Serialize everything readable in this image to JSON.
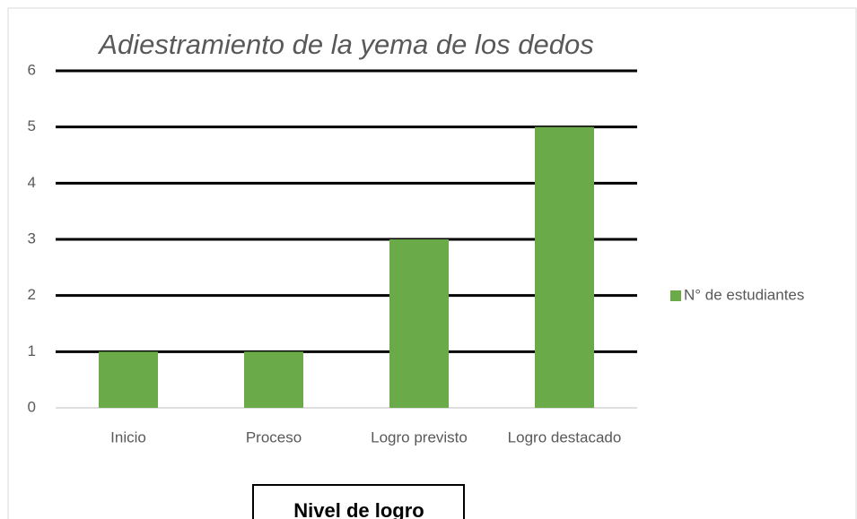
{
  "chart_data": {
    "type": "bar",
    "title": "Adiestramiento de la yema de los dedos",
    "categories": [
      "Inicio",
      "Proceso",
      "Logro previsto",
      "Logro destacado"
    ],
    "series": [
      {
        "name": "N° de estudiantes",
        "color": "#6aaa48",
        "values": [
          1,
          1,
          3,
          5
        ]
      }
    ],
    "ylim": [
      0,
      6
    ],
    "yticks": [
      0,
      1,
      2,
      3,
      4,
      5,
      6
    ],
    "grid": true,
    "legend": "right",
    "x_label": "Nivel de logro"
  }
}
